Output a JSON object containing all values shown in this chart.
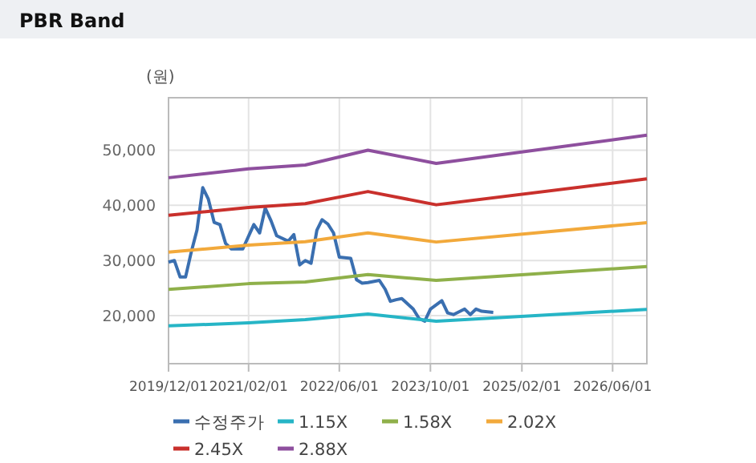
{
  "chart_data": {
    "type": "line",
    "title": "PBR Band",
    "ylabel": "(원)",
    "xlim": [
      "2019-12-01",
      "2026-12-01"
    ],
    "xticks": [
      {
        "value": "2019-12-01",
        "label": "2019/12/01"
      },
      {
        "value": "2021-02-01",
        "label": "2021/02/01"
      },
      {
        "value": "2022-06-01",
        "label": "2022/06/01"
      },
      {
        "value": "2023-10-01",
        "label": "2023/10/01"
      },
      {
        "value": "2025-02-01",
        "label": "2025/02/01"
      },
      {
        "value": "2026-06-01",
        "label": "2026/06/01"
      }
    ],
    "ylim": [
      11300,
      59500
    ],
    "yticks": [
      {
        "value": 20000,
        "label": "20,000"
      },
      {
        "value": 30000,
        "label": "30,000"
      },
      {
        "value": 40000,
        "label": "40,000"
      },
      {
        "value": 50000,
        "label": "50,000"
      }
    ],
    "grid": true,
    "legend": "bottom",
    "marker": "none",
    "line_style": "solid",
    "series": [
      {
        "name": "수정주가",
        "color": "#3a6fb0",
        "x": [
          "2019-12",
          "2020-01",
          "2020-02",
          "2020-03",
          "2020-04",
          "2020-05",
          "2020-06",
          "2020-07",
          "2020-08",
          "2020-09",
          "2020-10",
          "2020-11",
          "2021-01",
          "2021-03",
          "2021-04",
          "2021-05",
          "2021-06",
          "2021-07",
          "2021-09",
          "2021-10",
          "2021-11",
          "2021-12",
          "2022-01",
          "2022-02",
          "2022-03",
          "2022-04",
          "2022-05",
          "2022-06",
          "2022-08",
          "2022-09",
          "2022-10",
          "2022-11",
          "2023-01",
          "2023-02",
          "2023-03",
          "2023-04",
          "2023-05",
          "2023-07",
          "2023-08",
          "2023-09",
          "2023-10",
          "2023-12",
          "2024-01",
          "2024-02",
          "2024-04",
          "2024-05",
          "2024-06",
          "2024-07",
          "2024-09"
        ],
        "values": [
          29700,
          30000,
          27000,
          27000,
          31600,
          35500,
          43200,
          41100,
          36900,
          36500,
          33100,
          32100,
          32100,
          36500,
          35000,
          39500,
          37200,
          34500,
          33500,
          34700,
          29200,
          30000,
          29500,
          35500,
          37400,
          36600,
          35000,
          30600,
          30400,
          26500,
          25900,
          26000,
          26400,
          24800,
          22600,
          22900,
          23100,
          21200,
          19500,
          19000,
          21200,
          22700,
          20500,
          20200,
          21200,
          20200,
          21200,
          20800,
          20600
        ]
      },
      {
        "name": "1.15X",
        "color": "#26b5c6",
        "x": [
          "2019-12",
          "2021-02",
          "2021-12",
          "2022-11",
          "2023-11",
          "2026-12"
        ],
        "values": [
          18150,
          18700,
          19300,
          20300,
          19000,
          21150
        ]
      },
      {
        "name": "1.58X",
        "color": "#8fb04a",
        "x": [
          "2019-12",
          "2021-02",
          "2021-12",
          "2022-11",
          "2023-11",
          "2026-12"
        ],
        "values": [
          24750,
          25800,
          26100,
          27450,
          26400,
          28900
        ]
      },
      {
        "name": "2.02X",
        "color": "#f2a93b",
        "x": [
          "2019-12",
          "2021-02",
          "2021-12",
          "2022-11",
          "2023-11",
          "2026-12"
        ],
        "values": [
          31500,
          32800,
          33400,
          35000,
          33350,
          36850
        ]
      },
      {
        "name": "2.45X",
        "color": "#c9302c",
        "x": [
          "2019-12",
          "2021-02",
          "2021-12",
          "2022-11",
          "2023-11",
          "2026-12"
        ],
        "values": [
          38200,
          39600,
          40300,
          42500,
          40100,
          44800
        ]
      },
      {
        "name": "2.88X",
        "color": "#8e4f9e",
        "x": [
          "2019-12",
          "2021-02",
          "2021-12",
          "2022-11",
          "2023-11",
          "2026-12"
        ],
        "values": [
          45000,
          46600,
          47300,
          50000,
          47600,
          52700
        ]
      }
    ]
  }
}
